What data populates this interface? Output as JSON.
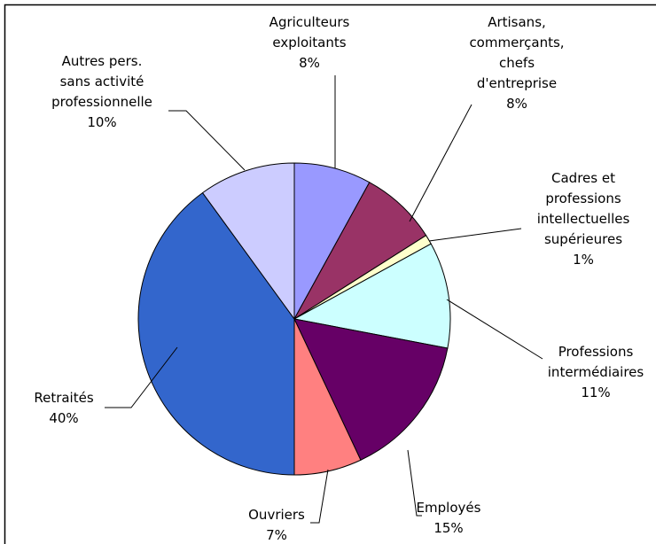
{
  "chart_data": {
    "type": "pie",
    "categories": [
      "Agriculteurs\nexploitants",
      "Artisans,\ncommerçants,\nchefs\nd'entreprise",
      "Cadres et\nprofessions\nintellectuelles\nsupérieures",
      "Professions\nintermédiaires",
      "Employés",
      "Ouvriers",
      "Retraités",
      "Autres pers.\nsans activité\nprofessionnelle"
    ],
    "values": [
      8,
      8,
      1,
      11,
      15,
      7,
      40,
      10
    ],
    "value_labels": [
      "8%",
      "8%",
      "1%",
      "11%",
      "15%",
      "7%",
      "40%",
      "10%"
    ],
    "colors": [
      "#9999ff",
      "#993366",
      "#ffffcc",
      "#ccffff",
      "#660066",
      "#ff8080",
      "#3366cc",
      "#ccccff"
    ]
  }
}
